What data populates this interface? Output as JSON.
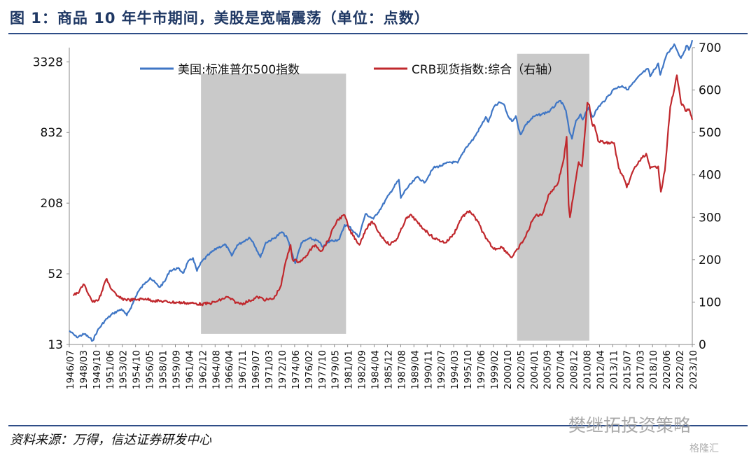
{
  "header": {
    "title": "图 1：商品 10 年牛市期间，美股是宽幅震荡（单位：点数）"
  },
  "footer": {
    "source": "资料来源：万得，信达证券研发中心",
    "watermark": "樊继拓投资策略",
    "logo_text": "格隆汇"
  },
  "chart_data": {
    "type": "line",
    "x_tick_labels": [
      "1946/07",
      "1948/03",
      "1949/10",
      "1951/06",
      "1953/02",
      "1954/10",
      "1956/05",
      "1958/01",
      "1959/09",
      "1961/04",
      "1962/12",
      "1964/08",
      "1966/04",
      "1967/11",
      "1969/07",
      "1971/03",
      "1972/10",
      "1974/06",
      "1976/02",
      "1977/10",
      "1979/05",
      "1981/01",
      "1982/09",
      "1984/04",
      "1985/12",
      "1987/08",
      "1989/04",
      "1990/11",
      "1992/07",
      "1994/03",
      "1995/10",
      "1997/06",
      "1999/02",
      "2000/10",
      "2002/05",
      "2004/01",
      "2005/09",
      "2007/04",
      "2008/12",
      "2010/08",
      "2012/04",
      "2013/11",
      "2015/07",
      "2017/03",
      "2018/10",
      "2020/06",
      "2022/02",
      "2023/10"
    ],
    "x_range": [
      "1946-07",
      "2024-03"
    ],
    "left_axis": {
      "scale": "log",
      "ticks": [
        13,
        52,
        208,
        832,
        3328
      ],
      "range": [
        13,
        4400
      ]
    },
    "right_axis": {
      "scale": "linear",
      "ticks": [
        0,
        100,
        200,
        300,
        400,
        500,
        600,
        700
      ],
      "range": [
        0,
        700
      ]
    },
    "legend_position": "top",
    "grid": false,
    "shaded_periods": [
      {
        "start": "1962-12",
        "end": "1981-01",
        "from": 16,
        "to": 2640
      },
      {
        "start": "2002-05",
        "end": "2011-05",
        "from": 14,
        "to": 3900
      }
    ],
    "series": [
      {
        "name": "美国:标准普尔500指数",
        "axis": "left",
        "color": "#3f76c5",
        "points": [
          [
            "1946-07",
            17
          ],
          [
            "1947-06",
            15
          ],
          [
            "1948-06",
            16
          ],
          [
            "1949-06",
            14
          ],
          [
            "1950-01",
            17
          ],
          [
            "1951-01",
            21
          ],
          [
            "1952-01",
            24
          ],
          [
            "1953-01",
            26
          ],
          [
            "1953-09",
            23
          ],
          [
            "1954-06",
            29
          ],
          [
            "1955-01",
            36
          ],
          [
            "1956-01",
            44
          ],
          [
            "1956-08",
            48
          ],
          [
            "1957-10",
            40
          ],
          [
            "1958-06",
            45
          ],
          [
            "1959-01",
            55
          ],
          [
            "1960-01",
            58
          ],
          [
            "1960-10",
            53
          ],
          [
            "1961-04",
            65
          ],
          [
            "1961-12",
            71
          ],
          [
            "1962-06",
            55
          ],
          [
            "1963-01",
            66
          ],
          [
            "1964-01",
            77
          ],
          [
            "1965-01",
            87
          ],
          [
            "1966-01",
            92
          ],
          [
            "1966-10",
            74
          ],
          [
            "1967-06",
            91
          ],
          [
            "1968-01",
            96
          ],
          [
            "1968-12",
            106
          ],
          [
            "1969-06",
            97
          ],
          [
            "1970-05",
            72
          ],
          [
            "1971-01",
            96
          ],
          [
            "1972-01",
            104
          ],
          [
            "1973-01",
            118
          ],
          [
            "1973-09",
            105
          ],
          [
            "1974-09",
            64
          ],
          [
            "1975-06",
            95
          ],
          [
            "1976-06",
            104
          ],
          [
            "1977-06",
            100
          ],
          [
            "1978-03",
            88
          ],
          [
            "1979-01",
            99
          ],
          [
            "1980-03",
            102
          ],
          [
            "1980-11",
            136
          ],
          [
            "1981-06",
            131
          ],
          [
            "1982-08",
            107
          ],
          [
            "1983-06",
            168
          ],
          [
            "1984-06",
            153
          ],
          [
            "1985-06",
            192
          ],
          [
            "1986-06",
            250
          ],
          [
            "1987-08",
            330
          ],
          [
            "1987-11",
            230
          ],
          [
            "1988-06",
            270
          ],
          [
            "1989-12",
            350
          ],
          [
            "1990-10",
            310
          ],
          [
            "1991-12",
            417
          ],
          [
            "1992-12",
            435
          ],
          [
            "1993-12",
            466
          ],
          [
            "1994-12",
            459
          ],
          [
            "1995-12",
            615
          ],
          [
            "1996-12",
            740
          ],
          [
            "1997-12",
            970
          ],
          [
            "1998-06",
            1130
          ],
          [
            "1998-10",
            1020
          ],
          [
            "1999-06",
            1370
          ],
          [
            "2000-03",
            1500
          ],
          [
            "2000-09",
            1450
          ],
          [
            "2001-03",
            1160
          ],
          [
            "2001-09",
            1040
          ],
          [
            "2002-03",
            1150
          ],
          [
            "2002-07",
            900
          ],
          [
            "2002-10",
            800
          ],
          [
            "2003-06",
            975
          ],
          [
            "2004-06",
            1140
          ],
          [
            "2005-06",
            1191
          ],
          [
            "2006-06",
            1270
          ],
          [
            "2007-06",
            1500
          ],
          [
            "2007-10",
            1550
          ],
          [
            "2008-06",
            1280
          ],
          [
            "2008-11",
            850
          ],
          [
            "2009-03",
            735
          ],
          [
            "2009-09",
            1050
          ],
          [
            "2010-04",
            1190
          ],
          [
            "2010-07",
            1070
          ],
          [
            "2011-04",
            1360
          ],
          [
            "2011-10",
            1130
          ],
          [
            "2012-06",
            1360
          ],
          [
            "2013-06",
            1610
          ],
          [
            "2014-06",
            1960
          ],
          [
            "2015-06",
            2080
          ],
          [
            "2016-02",
            1930
          ],
          [
            "2016-12",
            2240
          ],
          [
            "2017-12",
            2670
          ],
          [
            "2018-09",
            2900
          ],
          [
            "2018-12",
            2500
          ],
          [
            "2019-12",
            3230
          ],
          [
            "2020-03",
            2580
          ],
          [
            "2020-12",
            3750
          ],
          [
            "2021-12",
            4700
          ],
          [
            "2022-10",
            3580
          ],
          [
            "2023-07",
            4590
          ],
          [
            "2023-10",
            4200
          ],
          [
            "2024-03",
            5100
          ]
        ]
      },
      {
        "name": "CRB现货指数:综合（右轴）",
        "axis": "right",
        "color": "#c0282d",
        "points": [
          [
            "1947-01",
            115
          ],
          [
            "1947-10",
            125
          ],
          [
            "1948-04",
            142
          ],
          [
            "1948-08",
            132
          ],
          [
            "1949-06",
            100
          ],
          [
            "1950-01",
            103
          ],
          [
            "1950-06",
            115
          ],
          [
            "1951-01",
            150
          ],
          [
            "1951-03",
            155
          ],
          [
            "1951-10",
            130
          ],
          [
            "1952-06",
            115
          ],
          [
            "1953-01",
            108
          ],
          [
            "1954-01",
            105
          ],
          [
            "1955-01",
            106
          ],
          [
            "1956-01",
            108
          ],
          [
            "1957-01",
            103
          ],
          [
            "1958-01",
            102
          ],
          [
            "1959-01",
            100
          ],
          [
            "1960-01",
            99
          ],
          [
            "1961-01",
            98
          ],
          [
            "1962-01",
            97
          ],
          [
            "1963-01",
            95
          ],
          [
            "1964-01",
            97
          ],
          [
            "1965-01",
            102
          ],
          [
            "1966-03",
            112
          ],
          [
            "1967-06",
            98
          ],
          [
            "1968-01",
            96
          ],
          [
            "1969-01",
            103
          ],
          [
            "1970-01",
            112
          ],
          [
            "1971-01",
            105
          ],
          [
            "1972-01",
            108
          ],
          [
            "1972-12",
            140
          ],
          [
            "1973-06",
            190
          ],
          [
            "1974-02",
            235
          ],
          [
            "1974-05",
            200
          ],
          [
            "1975-03",
            195
          ],
          [
            "1975-12",
            205
          ],
          [
            "1976-06",
            220
          ],
          [
            "1977-03",
            235
          ],
          [
            "1977-12",
            220
          ],
          [
            "1978-12",
            250
          ],
          [
            "1979-06",
            275
          ],
          [
            "1980-01",
            295
          ],
          [
            "1980-11",
            305
          ],
          [
            "1981-06",
            270
          ],
          [
            "1982-09",
            235
          ],
          [
            "1983-06",
            270
          ],
          [
            "1984-04",
            290
          ],
          [
            "1985-06",
            255
          ],
          [
            "1986-06",
            235
          ],
          [
            "1987-06",
            250
          ],
          [
            "1988-06",
            295
          ],
          [
            "1989-03",
            305
          ],
          [
            "1990-01",
            285
          ],
          [
            "1990-11",
            270
          ],
          [
            "1992-01",
            250
          ],
          [
            "1993-06",
            240
          ],
          [
            "1994-06",
            260
          ],
          [
            "1995-06",
            300
          ],
          [
            "1996-06",
            315
          ],
          [
            "1997-06",
            290
          ],
          [
            "1998-06",
            250
          ],
          [
            "1999-06",
            225
          ],
          [
            "2000-06",
            230
          ],
          [
            "2001-09",
            205
          ],
          [
            "2002-06",
            225
          ],
          [
            "2003-06",
            255
          ],
          [
            "2004-03",
            290
          ],
          [
            "2004-09",
            305
          ],
          [
            "2005-06",
            305
          ],
          [
            "2006-05",
            355
          ],
          [
            "2007-06",
            380
          ],
          [
            "2008-03",
            440
          ],
          [
            "2008-07",
            490
          ],
          [
            "2008-10",
            330
          ],
          [
            "2008-12",
            300
          ],
          [
            "2009-06",
            360
          ],
          [
            "2010-01",
            430
          ],
          [
            "2010-06",
            420
          ],
          [
            "2011-02",
            570
          ],
          [
            "2011-05",
            565
          ],
          [
            "2011-09",
            520
          ],
          [
            "2012-01",
            515
          ],
          [
            "2012-06",
            480
          ],
          [
            "2013-06",
            475
          ],
          [
            "2014-06",
            475
          ],
          [
            "2015-01",
            415
          ],
          [
            "2015-09",
            390
          ],
          [
            "2016-01",
            370
          ],
          [
            "2016-12",
            415
          ],
          [
            "2017-12",
            440
          ],
          [
            "2018-06",
            450
          ],
          [
            "2018-12",
            415
          ],
          [
            "2019-12",
            420
          ],
          [
            "2020-04",
            360
          ],
          [
            "2020-10",
            410
          ],
          [
            "2021-06",
            560
          ],
          [
            "2022-01",
            610
          ],
          [
            "2022-04",
            635
          ],
          [
            "2022-10",
            570
          ],
          [
            "2023-06",
            550
          ],
          [
            "2023-10",
            555
          ],
          [
            "2024-03",
            530
          ]
        ]
      }
    ]
  }
}
